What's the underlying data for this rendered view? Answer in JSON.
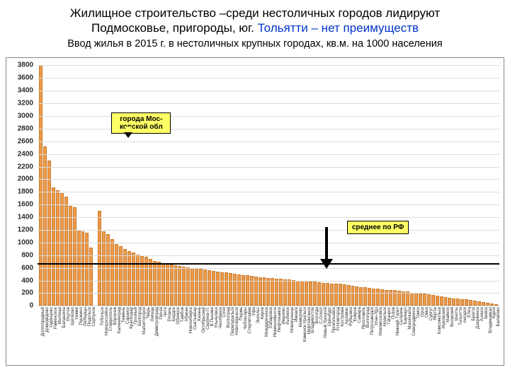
{
  "title": {
    "line1_a": "Жилищное строительство –среди нестоличных городов лидируют",
    "line2_a": "Подмосковье, пригороды, юг. ",
    "line2_b": "Тольятти – нет преимуществ",
    "subtitle": "Ввод жилья в 2015 г. в нестоличных крупных городах,  кв.м. на 1000 населения"
  },
  "chart": {
    "type": "bar",
    "y": {
      "min": 0,
      "max": 3800,
      "step": 200
    },
    "bar_color": "#ed9a4a",
    "bar_border": "#c97a2a",
    "grid_color": "#dcdcdc",
    "ref_value": 680,
    "ref_color": "#000000",
    "callouts": {
      "moscow_region": {
        "text_l1": "города Мос-",
        "text_l2": "ковской обл",
        "left_pct": 16,
        "y_value": 3050
      },
      "rf_avg": {
        "text": "среднее по РФ",
        "left_pct": 67,
        "y_value": 1350
      }
    },
    "arrow": {
      "left_pct": 62.5,
      "from_value": 1250,
      "to_value": 720
    },
    "bars": [
      {
        "label": "Долгопрудный",
        "value": 3830
      },
      {
        "label": "Домодедово",
        "value": 2520
      },
      {
        "label": "Одинцово",
        "value": 2300
      },
      {
        "label": "Раменское",
        "value": 1870
      },
      {
        "label": "Мытищи",
        "value": 1830
      },
      {
        "label": "Балашиха",
        "value": 1780
      },
      {
        "label": "Реутов",
        "value": 1720
      },
      {
        "label": "Щёлково",
        "value": 1580
      },
      {
        "label": "Химки",
        "value": 1560
      },
      {
        "label": "Пушкино",
        "value": 1200
      },
      {
        "label": "Люберцы",
        "value": 1180
      },
      {
        "label": "Подольск",
        "value": 1150
      },
      {
        "label": "Серпухов",
        "value": 920
      },
      {
        "label": "",
        "value": 0,
        "gap": true
      },
      {
        "label": "Тобольск",
        "value": 1500
      },
      {
        "label": "Новороссийск",
        "value": 1180
      },
      {
        "label": "Ставрополь",
        "value": 1130
      },
      {
        "label": "Воронеж",
        "value": 1050
      },
      {
        "label": "Калининград",
        "value": 980
      },
      {
        "label": "Тюмень",
        "value": 940
      },
      {
        "label": "Саранск",
        "value": 900
      },
      {
        "label": "Краснодар",
        "value": 870
      },
      {
        "label": "Грозный",
        "value": 840
      },
      {
        "label": "Белгород",
        "value": 810
      },
      {
        "label": "Магнитогорск",
        "value": 790
      },
      {
        "label": "Тверь",
        "value": 770
      },
      {
        "label": "Липецк",
        "value": 740
      },
      {
        "label": "Димитровград",
        "value": 710
      },
      {
        "label": "Пенза",
        "value": 700
      },
      {
        "label": "Чита",
        "value": 680
      },
      {
        "label": "Рязань",
        "value": 670
      },
      {
        "label": "Бердск",
        "value": 650
      },
      {
        "label": "Обнинск",
        "value": 640
      },
      {
        "label": "Тамбов",
        "value": 630
      },
      {
        "label": "Абакан",
        "value": 620
      },
      {
        "label": "Новосибирск",
        "value": 610
      },
      {
        "label": "Сыктывкар",
        "value": 600
      },
      {
        "label": "Казань",
        "value": 590
      },
      {
        "label": "Октябрьский",
        "value": 580
      },
      {
        "label": "Сергиев П.",
        "value": 570
      },
      {
        "label": "В.Пышма",
        "value": 560
      },
      {
        "label": "Ульяновск",
        "value": 550
      },
      {
        "label": "Челябинск",
        "value": 540
      },
      {
        "label": "Сочи",
        "value": 530
      },
      {
        "label": "Волгоград",
        "value": 525
      },
      {
        "label": "Первоуральск",
        "value": 520
      },
      {
        "label": "Новочеркасск",
        "value": 510
      },
      {
        "label": "Пермь",
        "value": 500
      },
      {
        "label": "Чебоксары",
        "value": 490
      },
      {
        "label": "Стерлитамак",
        "value": 480
      },
      {
        "label": "Уфа",
        "value": 470
      },
      {
        "label": "Энгельс",
        "value": 460
      },
      {
        "label": "Киров",
        "value": 455
      },
      {
        "label": "Междуреченск",
        "value": 450
      },
      {
        "label": "Хабаровск",
        "value": 445
      },
      {
        "label": "Невинномысск",
        "value": 440
      },
      {
        "label": "Нефтекамск",
        "value": 430
      },
      {
        "label": "Иваново",
        "value": 425
      },
      {
        "label": "Рыбинск",
        "value": 420
      },
      {
        "label": "Новокузнецк",
        "value": 415
      },
      {
        "label": "Ижевск",
        "value": 410
      },
      {
        "label": "Кемерово",
        "value": 400
      },
      {
        "label": "Каменск-Уральск",
        "value": 395
      },
      {
        "label": "Нефтеюганск",
        "value": 390
      },
      {
        "label": "Владивосток",
        "value": 385
      },
      {
        "label": "Вологда",
        "value": 380
      },
      {
        "label": "С.Оскол",
        "value": 370
      },
      {
        "label": "Новый Уренгой",
        "value": 365
      },
      {
        "label": "Оренбург",
        "value": 360
      },
      {
        "label": "Прокопьевск",
        "value": 355
      },
      {
        "label": "Н.Новгород",
        "value": 350
      },
      {
        "label": "Кострома",
        "value": 345
      },
      {
        "label": "Арзамас",
        "value": 340
      },
      {
        "label": "Рубцовск",
        "value": 330
      },
      {
        "label": "Ковров",
        "value": 320
      },
      {
        "label": "Самара",
        "value": 310
      },
      {
        "label": "Ярославль",
        "value": 300
      },
      {
        "label": "Волгоград",
        "value": 290
      },
      {
        "label": "Петрозаводск",
        "value": 280
      },
      {
        "label": "Улан-Удэ",
        "value": 275
      },
      {
        "label": "Новомосковск",
        "value": 270
      },
      {
        "label": "Норильск",
        "value": 260
      },
      {
        "label": "Таганрог",
        "value": 255
      },
      {
        "label": "Псков",
        "value": 250
      },
      {
        "label": "Нижний Тагил",
        "value": 245
      },
      {
        "label": "Сызрань",
        "value": 240
      },
      {
        "label": "Барнаул",
        "value": 230
      },
      {
        "label": "Махачкала",
        "value": 225
      },
      {
        "label": "Северодвинск",
        "value": 210
      },
      {
        "label": "Томск",
        "value": 200
      },
      {
        "label": "Орск",
        "value": 195
      },
      {
        "label": "Омск",
        "value": 190
      },
      {
        "label": "Сургут",
        "value": 180
      },
      {
        "label": "Якутск",
        "value": 170
      },
      {
        "label": "Комсомольск",
        "value": 160
      },
      {
        "label": "Жуковский",
        "value": 150
      },
      {
        "label": "Майкоп",
        "value": 140
      },
      {
        "label": "Волжский",
        "value": 130
      },
      {
        "label": "Шахты",
        "value": 120
      },
      {
        "label": "Тольятти",
        "value": 115
      },
      {
        "label": "Ангарск",
        "value": 110
      },
      {
        "label": "Елец",
        "value": 100
      },
      {
        "label": "Братск",
        "value": 90
      },
      {
        "label": "Дзержинск",
        "value": 80
      },
      {
        "label": "Ачинск",
        "value": 70
      },
      {
        "label": "Бийск",
        "value": 60
      },
      {
        "label": "Владикавказ",
        "value": 50
      },
      {
        "label": "Курск",
        "value": 40
      },
      {
        "label": "Балаково",
        "value": 30
      }
    ]
  }
}
